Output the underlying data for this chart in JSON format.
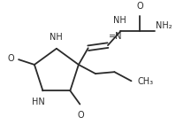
{
  "bg_color": "#ffffff",
  "line_color": "#2a2a2a",
  "text_color": "#2a2a2a",
  "lw": 1.3,
  "font_size": 7.0,
  "fig_width": 2.16,
  "fig_height": 1.5,
  "xlim": [
    0.0,
    1.0
  ],
  "ylim": [
    0.0,
    0.75
  ]
}
